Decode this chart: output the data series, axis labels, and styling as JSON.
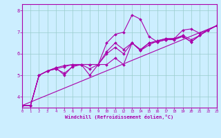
{
  "xlabel": "Windchill (Refroidissement éolien,°C)",
  "bg_color": "#cceeff",
  "grid_color": "#99cccc",
  "line_color": "#aa00aa",
  "xlim": [
    0,
    23
  ],
  "ylim": [
    3.5,
    8.3
  ],
  "yticks": [
    4,
    5,
    6,
    7,
    8
  ],
  "xticks": [
    0,
    1,
    2,
    3,
    4,
    5,
    6,
    7,
    8,
    9,
    10,
    11,
    12,
    13,
    14,
    15,
    16,
    17,
    18,
    19,
    20,
    21,
    22,
    23
  ],
  "lines": [
    [
      3.6,
      3.6,
      5.0,
      5.2,
      5.3,
      5.4,
      5.5,
      5.5,
      5.5,
      5.5,
      6.5,
      6.9,
      7.0,
      7.8,
      7.6,
      6.8,
      6.55,
      6.65,
      6.7,
      7.1,
      7.15,
      6.95,
      7.1,
      7.3
    ],
    [
      3.6,
      3.6,
      5.0,
      5.2,
      5.35,
      5.45,
      5.5,
      5.5,
      5.5,
      5.5,
      5.5,
      5.8,
      5.5,
      6.5,
      6.15,
      6.5,
      6.6,
      6.7,
      6.7,
      6.8,
      6.55,
      6.85,
      7.1,
      7.3
    ],
    [
      3.6,
      3.6,
      5.0,
      5.2,
      5.3,
      5.1,
      5.4,
      5.5,
      5.3,
      5.5,
      6.1,
      6.5,
      6.2,
      6.5,
      6.2,
      6.5,
      6.55,
      6.65,
      6.65,
      6.8,
      6.55,
      6.85,
      7.1,
      7.3
    ],
    [
      3.6,
      3.6,
      5.0,
      5.2,
      5.35,
      5.0,
      5.45,
      5.5,
      5.0,
      5.5,
      6.0,
      6.3,
      6.0,
      6.5,
      6.15,
      6.4,
      6.6,
      6.7,
      6.7,
      6.85,
      6.65,
      6.85,
      7.1,
      7.3
    ]
  ],
  "trend_line": [
    3.6,
    7.3
  ],
  "trend_x": [
    0,
    23
  ]
}
